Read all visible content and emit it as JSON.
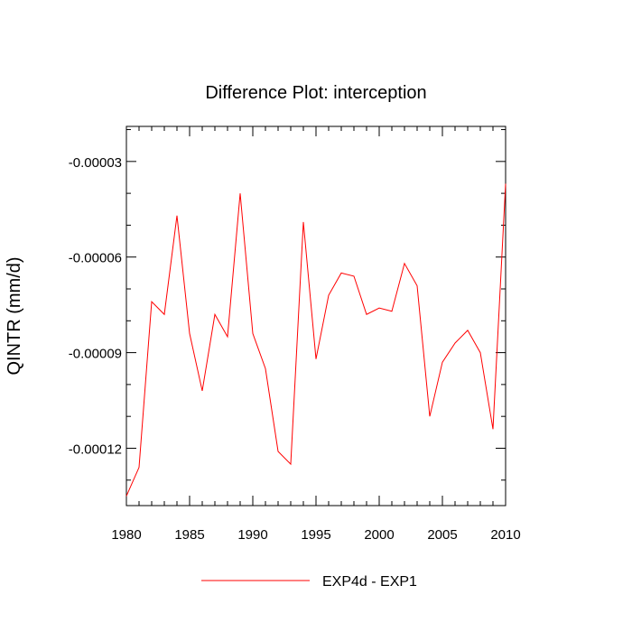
{
  "chart_data": {
    "type": "line",
    "title": "Difference Plot: interception",
    "xlabel": "",
    "ylabel": "QINTR  (mm/d)",
    "xlim": [
      1980,
      2010
    ],
    "ylim": [
      -0.000138,
      -1.9e-05
    ],
    "x_ticks": [
      1980,
      1985,
      1990,
      1995,
      2000,
      2005,
      2010
    ],
    "x_tick_labels": [
      "1980",
      "1985",
      "1990",
      "1995",
      "2000",
      "2005",
      "2010"
    ],
    "y_ticks": [
      -3e-05,
      -6e-05,
      -9e-05,
      -0.00012
    ],
    "y_tick_labels": [
      "-0.00003",
      "-0.00006",
      "-0.00009",
      "-0.00012"
    ],
    "grid": false,
    "legend_position": "bottom-center",
    "x": [
      1980,
      1981,
      1982,
      1983,
      1984,
      1985,
      1986,
      1987,
      1988,
      1989,
      1990,
      1991,
      1992,
      1993,
      1994,
      1995,
      1996,
      1997,
      1998,
      1999,
      2000,
      2001,
      2002,
      2003,
      2004,
      2005,
      2006,
      2007,
      2008,
      2009,
      2010
    ],
    "series": [
      {
        "name": "EXP4d - EXP1",
        "color": "#ff0000",
        "values": [
          -0.000135,
          -0.000126,
          -7.4e-05,
          -7.8e-05,
          -4.7e-05,
          -8.4e-05,
          -0.000102,
          -7.8e-05,
          -8.5e-05,
          -4e-05,
          -8.4e-05,
          -9.5e-05,
          -0.000121,
          -0.000125,
          -4.9e-05,
          -9.2e-05,
          -7.2e-05,
          -6.5e-05,
          -6.6e-05,
          -7.8e-05,
          -7.6e-05,
          -7.7e-05,
          -6.2e-05,
          -6.9e-05,
          -0.00011,
          -9.3e-05,
          -8.7e-05,
          -8.3e-05,
          -9e-05,
          -0.000114,
          -3.7e-05
        ]
      }
    ]
  }
}
